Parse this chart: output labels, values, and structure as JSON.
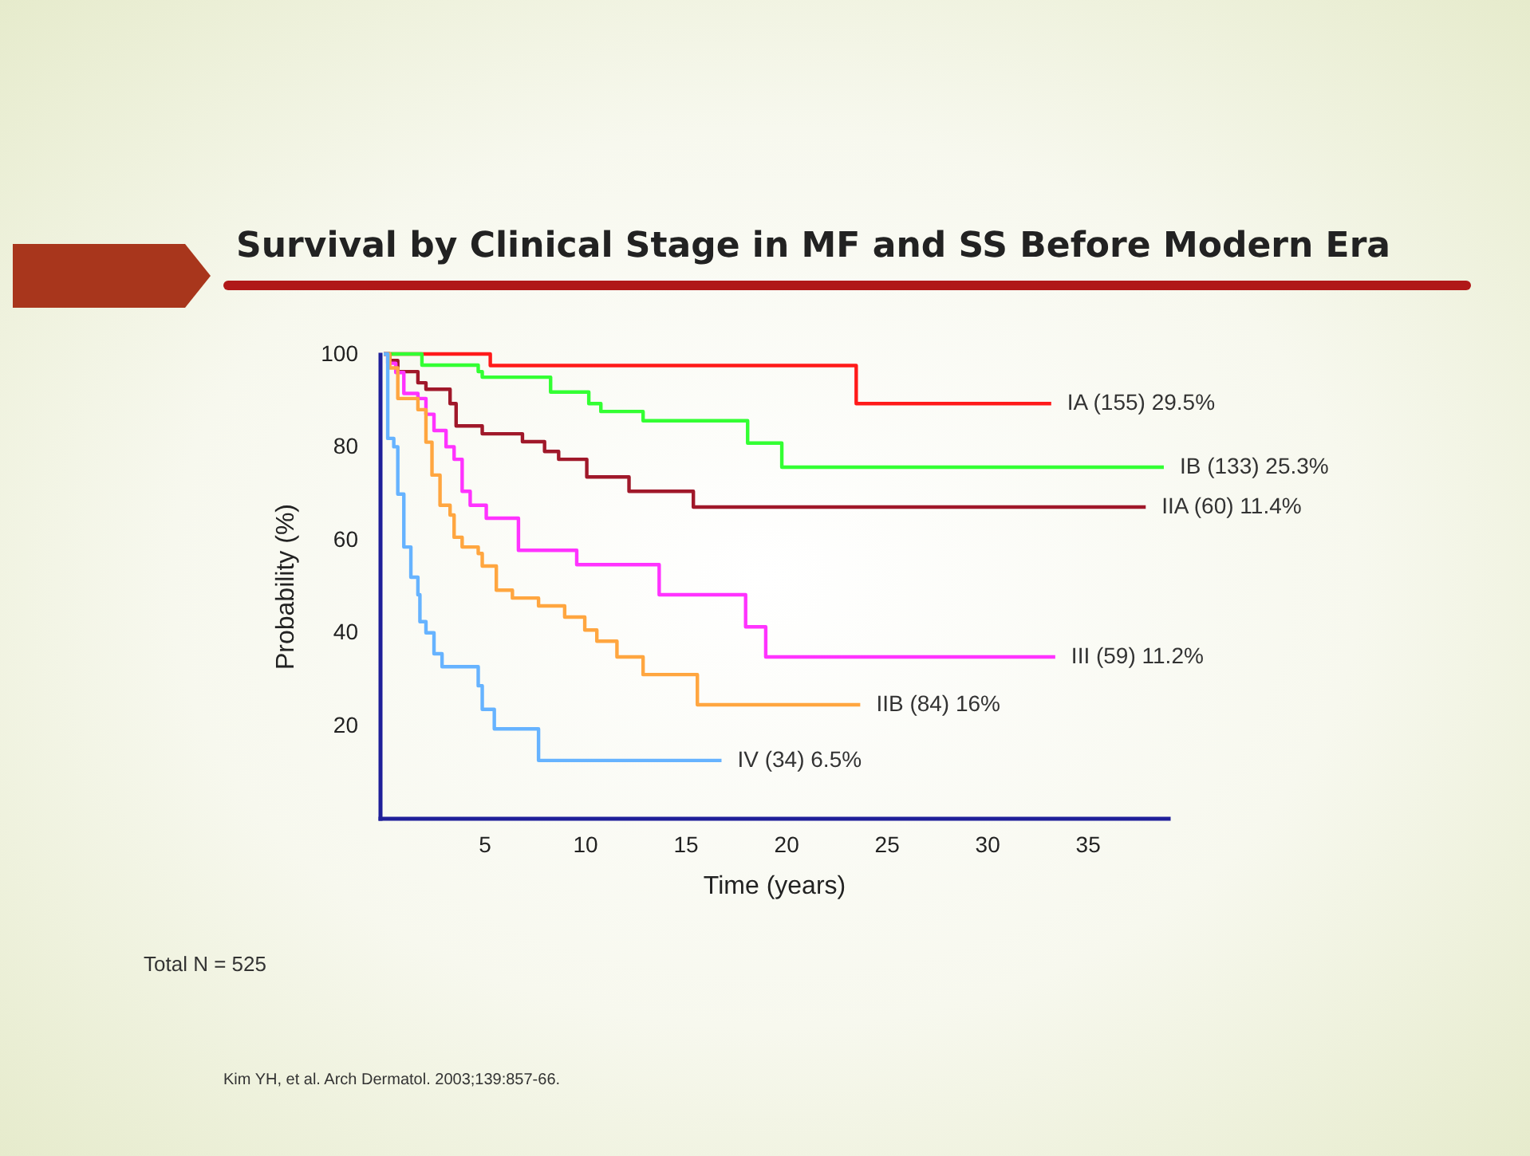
{
  "chart_data": {
    "type": "step",
    "title": "Survival by Clinical Stage in MF and SS Before Modern Era",
    "xlabel": "Time (years)",
    "ylabel": "Probability (%)",
    "xlim": [
      -0.2,
      39
    ],
    "ylim": [
      0,
      100
    ],
    "xticks": [
      5,
      10,
      15,
      20,
      25,
      30,
      35
    ],
    "yticks": [
      20,
      40,
      60,
      80,
      100
    ],
    "grid": false,
    "annotations": [
      "Total N = 525",
      "Kim YH,  et al. Arch Dermatol. 2003;139:857-66."
    ],
    "series": [
      {
        "name": "IA (155)  29.5%",
        "color": "#ff1a1a",
        "x": [
          0,
          5.3,
          23.5,
          33.2
        ],
        "values": [
          100,
          97.5,
          89.3,
          89.3
        ]
      },
      {
        "name": "IB (133) 25.3%",
        "color": "#33ff33",
        "x": [
          0,
          1.9,
          4.7,
          4.9,
          8.3,
          10.2,
          10.8,
          12.9,
          18.1,
          19.8,
          38.8
        ],
        "values": [
          100,
          97.6,
          96.2,
          95,
          91.8,
          89.3,
          87.6,
          85.6,
          80.8,
          75.6,
          75.6
        ]
      },
      {
        "name": "IIA (60) 11.4%",
        "color": "#a0182a",
        "x": [
          0,
          0.3,
          0.7,
          1.7,
          2.1,
          3.3,
          3.6,
          4.9,
          6.9,
          8.0,
          8.7,
          10.1,
          12.2,
          15.4,
          37.9
        ],
        "values": [
          100,
          98.6,
          96.2,
          93.8,
          92.4,
          89.3,
          84.5,
          82.8,
          81.1,
          79,
          77.3,
          73.5,
          70.4,
          67,
          67
        ]
      },
      {
        "name": "III (59) 11.2%",
        "color": "#ff33ff",
        "x": [
          0,
          0.2,
          0.6,
          1.0,
          1.7,
          2.1,
          2.5,
          3.1,
          3.5,
          3.9,
          4.3,
          5.1,
          6.7,
          9.6,
          13.7,
          18.0,
          19.0,
          33.4
        ],
        "values": [
          100,
          98,
          96,
          91.5,
          90.4,
          87,
          83.5,
          80,
          77.3,
          70.4,
          67.4,
          64.6,
          57.7,
          54.6,
          48.1,
          41.2,
          34.7,
          34.7
        ]
      },
      {
        "name": "IIB (84) 16%",
        "color": "#ffa640",
        "x": [
          0,
          0.3,
          0.7,
          1.7,
          2.1,
          2.4,
          2.8,
          3.3,
          3.5,
          3.9,
          4.7,
          4.9,
          5.6,
          6.4,
          7.7,
          9.0,
          10.0,
          10.6,
          11.6,
          12.9,
          15.6,
          23.7
        ],
        "values": [
          100,
          97,
          90.4,
          88,
          81,
          73.9,
          67.4,
          65.3,
          60.5,
          58.4,
          57,
          54.3,
          49.1,
          47.4,
          45.7,
          43.3,
          40.5,
          38.1,
          34.7,
          30.9,
          24.4,
          24.4
        ]
      },
      {
        "name": "IV (34) 6.5%",
        "color": "#66b3ff",
        "x": [
          0,
          0.2,
          0.5,
          0.7,
          1.0,
          1.35,
          1.7,
          1.8,
          2.1,
          2.5,
          2.9,
          4.7,
          4.9,
          5.5,
          7.7,
          16.8
        ],
        "values": [
          100,
          81.8,
          80,
          69.8,
          58.4,
          51.9,
          48.1,
          42.3,
          39.9,
          35.4,
          32.6,
          28.5,
          23.4,
          19.2,
          12.4,
          12.4
        ]
      }
    ]
  }
}
